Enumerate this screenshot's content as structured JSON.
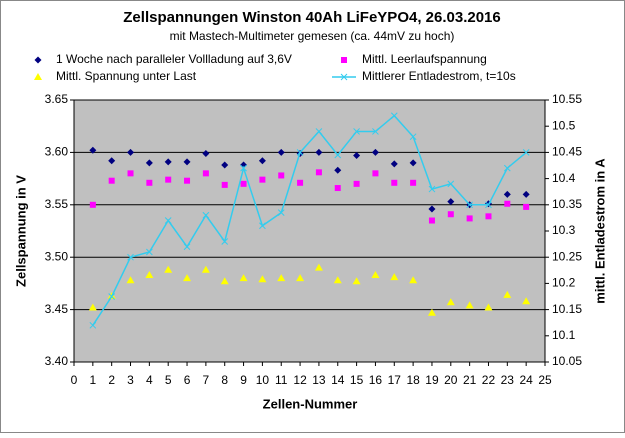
{
  "chart_data": {
    "type": "scatter",
    "title": "Zellspannungen Winston 40Ah LiFeYPO4, 26.03.2016",
    "subtitle": "mit Mastech-Multimeter gemesen (ca. 44mV zu hoch)",
    "x_label": "Zellen-Nummer",
    "y_label": "Zellspannung in V",
    "y2_label": "mittl. Entladestrom in A",
    "legend": "top",
    "grid": true,
    "x": [
      1,
      2,
      3,
      4,
      5,
      6,
      7,
      8,
      9,
      10,
      11,
      12,
      13,
      14,
      15,
      16,
      17,
      18,
      19,
      20,
      21,
      22,
      23,
      24
    ],
    "xlim": [
      0,
      25
    ],
    "xticks": [
      0,
      1,
      2,
      3,
      4,
      5,
      6,
      7,
      8,
      9,
      10,
      11,
      12,
      13,
      14,
      15,
      16,
      17,
      18,
      19,
      20,
      21,
      22,
      23,
      24,
      25
    ],
    "ylim": [
      3.4,
      3.65
    ],
    "yticks": [
      {
        "value": 3.4,
        "label": "3.40"
      },
      3.45,
      {
        "value": 3.5,
        "label": "3.50"
      },
      3.55,
      {
        "value": 3.6,
        "label": "3.60"
      },
      3.65
    ],
    "y2lim": [
      10.05,
      10.55
    ],
    "y2ticks": [
      10.05,
      10.1,
      10.15,
      10.2,
      10.25,
      10.3,
      10.35,
      10.4,
      10.45,
      10.5,
      10.55
    ],
    "series": [
      {
        "name": "1 Woche nach paralleler Vollladung auf 3,6V",
        "color": "#000080",
        "marker": "diamond",
        "values": [
          3.602,
          3.592,
          3.6,
          3.59,
          3.591,
          3.591,
          3.599,
          3.588,
          3.588,
          3.592,
          3.6,
          3.599,
          3.6,
          3.583,
          3.597,
          3.6,
          3.589,
          3.59,
          3.546,
          3.553,
          3.55,
          3.551,
          3.56,
          3.56
        ]
      },
      {
        "name": "Mittl. Leerlaufspannung",
        "color": "#ff00ff",
        "marker": "square",
        "values": [
          3.55,
          3.573,
          3.58,
          3.571,
          3.574,
          3.573,
          3.58,
          3.569,
          3.57,
          3.574,
          3.578,
          3.571,
          3.581,
          3.566,
          3.57,
          3.58,
          3.571,
          3.571,
          3.535,
          3.541,
          3.537,
          3.539,
          3.551,
          3.548
        ]
      },
      {
        "name": "Mittl. Spannung unter Last",
        "color": "#ffff00",
        "marker": "triangle",
        "values": [
          3.452,
          3.463,
          3.478,
          3.483,
          3.488,
          3.48,
          3.488,
          3.477,
          3.48,
          3.479,
          3.48,
          3.48,
          3.49,
          3.478,
          3.477,
          3.483,
          3.481,
          3.478,
          3.447,
          3.457,
          3.454,
          3.452,
          3.464,
          3.458
        ]
      },
      {
        "name": "Mittlerer Entladestrom, t=10s",
        "color": "#33ccee",
        "marker": "line",
        "axis": "y2",
        "values": [
          10.12,
          10.175,
          10.25,
          10.26,
          10.32,
          10.27,
          10.33,
          10.28,
          10.42,
          10.31,
          10.335,
          10.45,
          10.49,
          10.445,
          10.49,
          10.49,
          10.52,
          10.48,
          10.38,
          10.39,
          10.35,
          10.35,
          10.42,
          10.45
        ]
      }
    ]
  }
}
